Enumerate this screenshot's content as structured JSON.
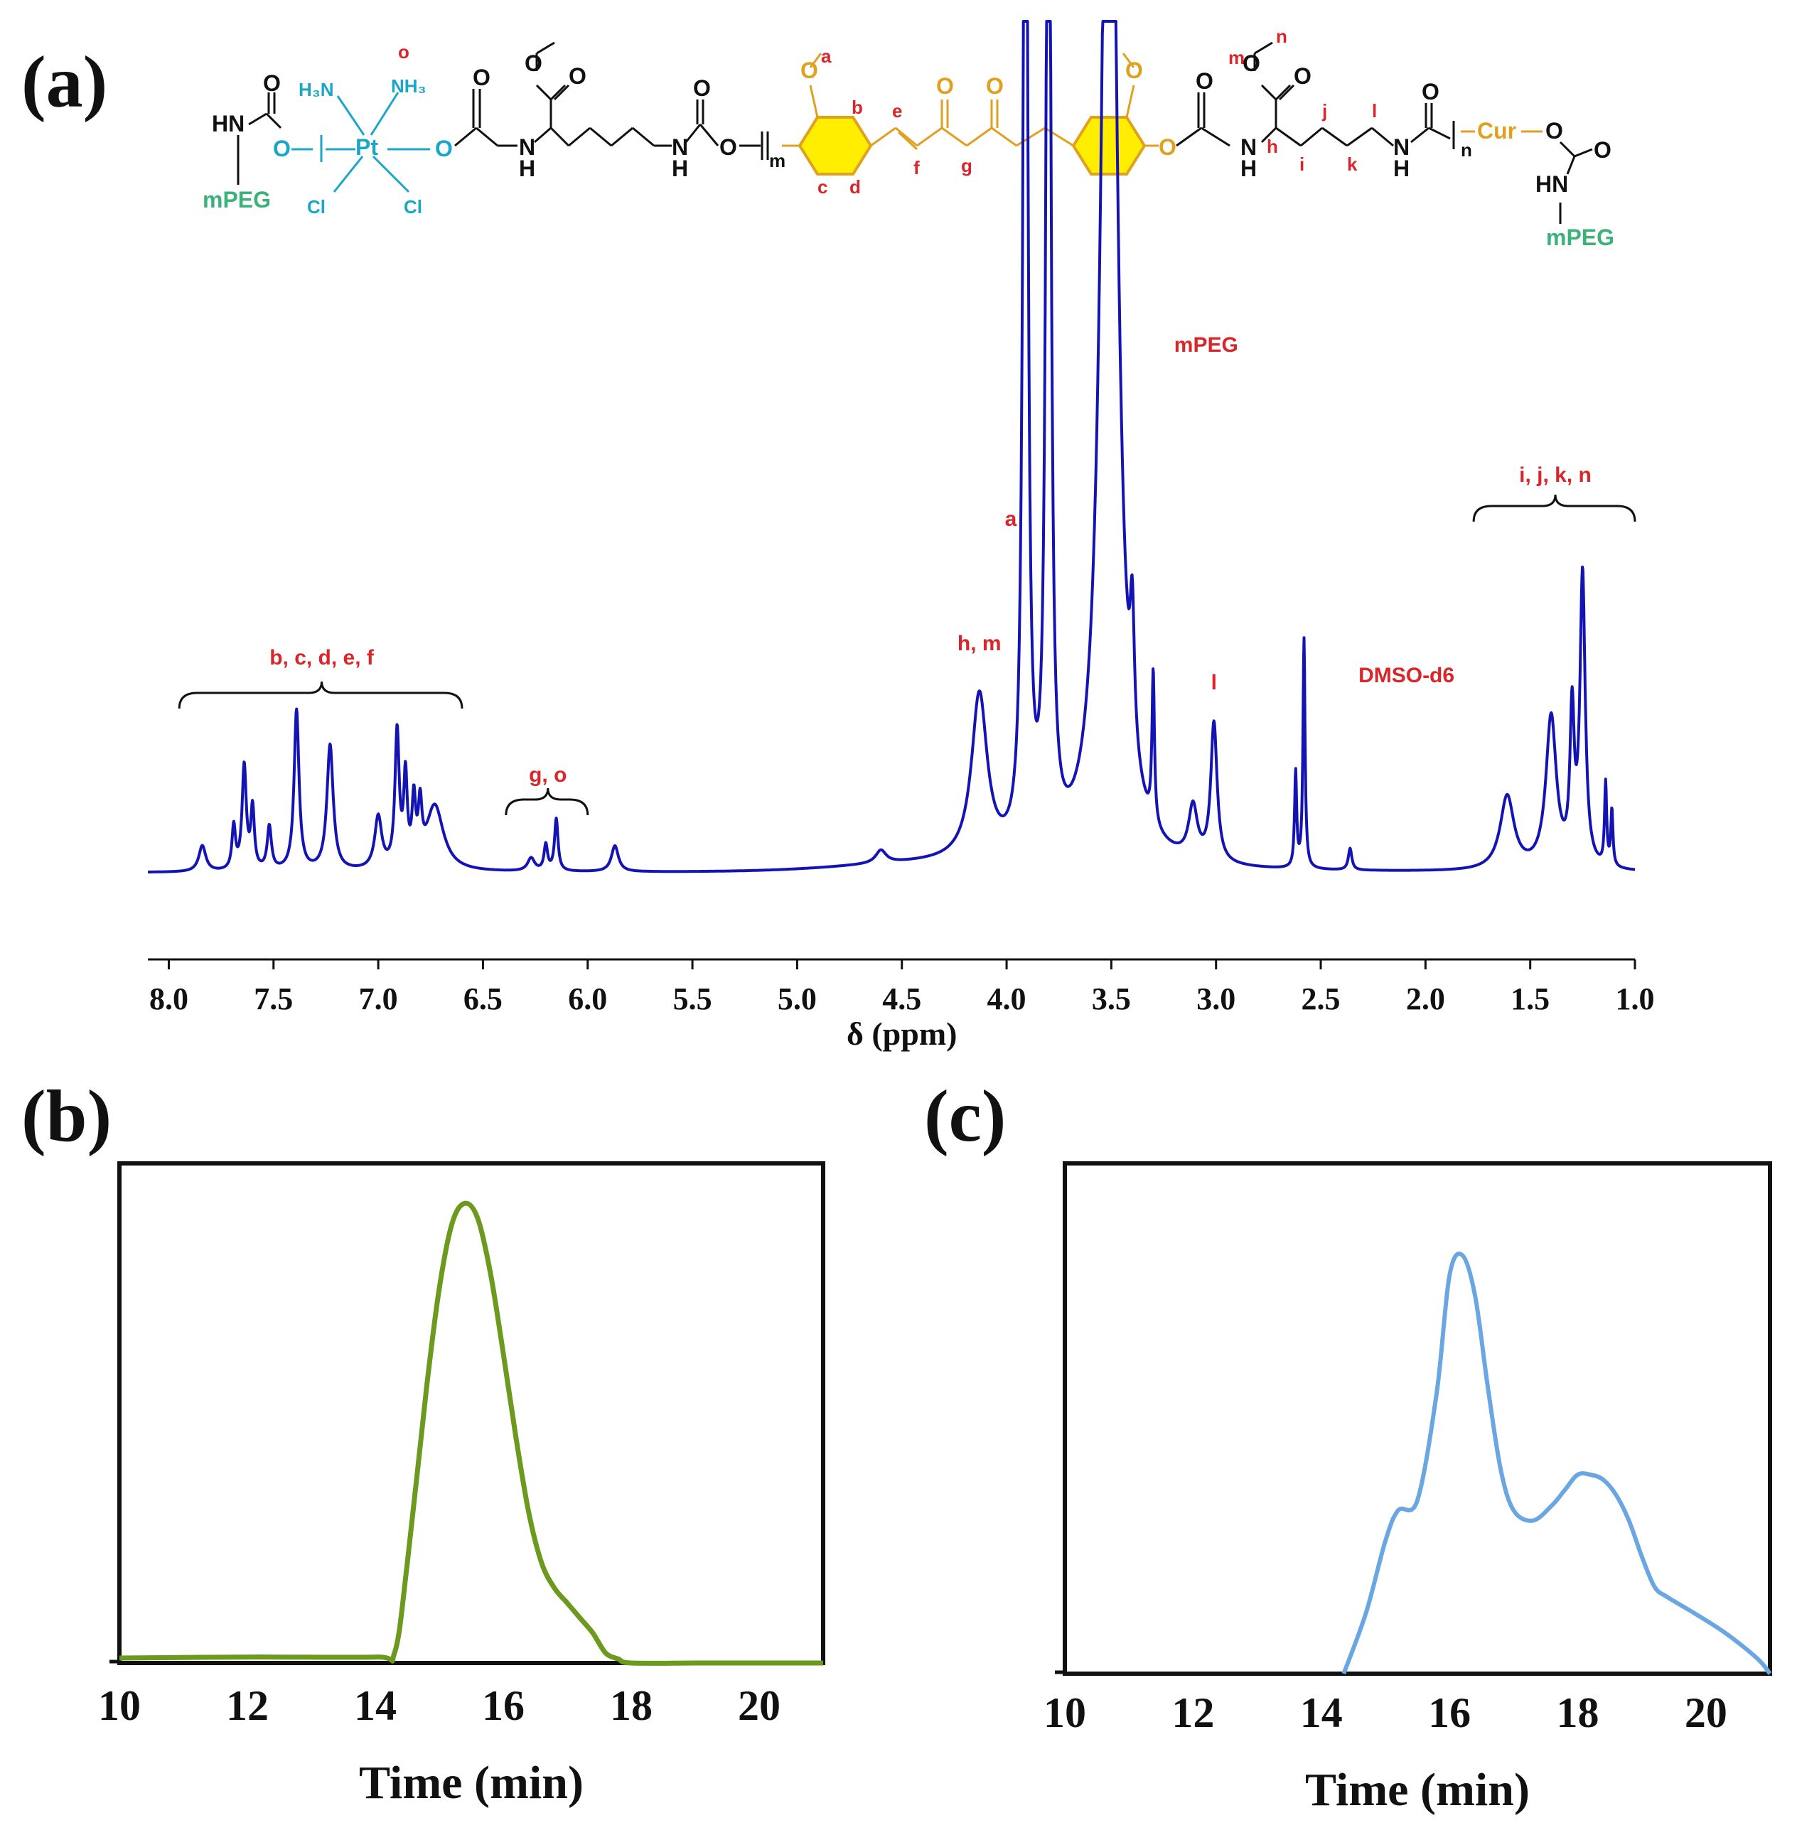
{
  "colors": {
    "nmr_trace": "#1414b4",
    "gpc_b": "#6b9a1e",
    "gpc_c": "#6aa6e2",
    "annotation": "#d9262a",
    "mpeg_green": "#3cb27a",
    "pt_cyan": "#1aa7c7",
    "curcumin_orange": "#e0a020",
    "ring_yellow": "#ffee00"
  },
  "panels": {
    "a": "(a)",
    "b": "(b)",
    "c": "(c)"
  },
  "structure": {
    "mpeg_left": "mPEG",
    "mpeg_right": "mPEG",
    "hn_left": "HN",
    "hn_right": "HN",
    "pt": "Pt",
    "h3n": "H₃N",
    "nh3": "NH₃",
    "cl_left": "Cl",
    "cl_right": "Cl",
    "o_label": "o",
    "oxygen": "O",
    "nh": "N",
    "h": "H",
    "cur": "Cur",
    "repeat_m": "m",
    "repeat_n": "n",
    "atoms": [
      "a",
      "b",
      "c",
      "d",
      "e",
      "f",
      "g",
      "h",
      "i",
      "j",
      "k",
      "l",
      "m",
      "n"
    ]
  },
  "chart_data": [
    {
      "id": "a",
      "type": "line",
      "title": "",
      "xlabel": "δ (ppm)",
      "ylabel": "",
      "xlim": [
        8.1,
        1.0
      ],
      "ylim": [
        0,
        1
      ],
      "x_reversed": true,
      "grid": false,
      "tick_labels": [
        "8.0",
        "7.5",
        "7.0",
        "6.5",
        "6.0",
        "5.5",
        "5.0",
        "4.5",
        "4.0",
        "3.5",
        "3.0",
        "2.5",
        "2.0",
        "1.5",
        "1.0"
      ],
      "tick_values": [
        8.0,
        7.5,
        7.0,
        6.5,
        6.0,
        5.5,
        5.0,
        4.5,
        4.0,
        3.5,
        3.0,
        2.5,
        2.0,
        1.5,
        1.0
      ],
      "peaks": [
        {
          "ppm": 7.84,
          "height": 0.06,
          "width": 0.02
        },
        {
          "ppm": 7.69,
          "height": 0.1,
          "width": 0.01
        },
        {
          "ppm": 7.64,
          "height": 0.24,
          "width": 0.012
        },
        {
          "ppm": 7.6,
          "height": 0.14,
          "width": 0.01
        },
        {
          "ppm": 7.52,
          "height": 0.1,
          "width": 0.012
        },
        {
          "ppm": 7.39,
          "height": 0.37,
          "width": 0.014
        },
        {
          "ppm": 7.23,
          "height": 0.29,
          "width": 0.018
        },
        {
          "ppm": 7.0,
          "height": 0.12,
          "width": 0.02
        },
        {
          "ppm": 6.91,
          "height": 0.31,
          "width": 0.012
        },
        {
          "ppm": 6.87,
          "height": 0.2,
          "width": 0.01
        },
        {
          "ppm": 6.83,
          "height": 0.14,
          "width": 0.01
        },
        {
          "ppm": 6.8,
          "height": 0.12,
          "width": 0.01
        },
        {
          "ppm": 6.73,
          "height": 0.15,
          "width": 0.05
        },
        {
          "ppm": 6.27,
          "height": 0.03,
          "width": 0.02
        },
        {
          "ppm": 6.2,
          "height": 0.06,
          "width": 0.01
        },
        {
          "ppm": 6.15,
          "height": 0.12,
          "width": 0.01
        },
        {
          "ppm": 5.87,
          "height": 0.06,
          "width": 0.02
        },
        {
          "ppm": 4.6,
          "height": 0.03,
          "width": 0.03
        },
        {
          "ppm": 4.13,
          "height": 0.38,
          "width": 0.045
        },
        {
          "ppm": 3.91,
          "height": 3.2,
          "width": 0.012
        },
        {
          "ppm": 3.8,
          "height": 3.2,
          "width": 0.012
        },
        {
          "ppm": 3.51,
          "height": 3.2,
          "width": 0.04
        },
        {
          "ppm": 3.4,
          "height": 0.3,
          "width": 0.012
        },
        {
          "ppm": 3.3,
          "height": 0.35,
          "width": 0.007
        },
        {
          "ppm": 3.11,
          "height": 0.12,
          "width": 0.025
        },
        {
          "ppm": 3.01,
          "height": 0.32,
          "width": 0.018
        },
        {
          "ppm": 2.62,
          "height": 0.22,
          "width": 0.006
        },
        {
          "ppm": 2.58,
          "height": 0.53,
          "width": 0.006
        },
        {
          "ppm": 2.36,
          "height": 0.05,
          "width": 0.01
        },
        {
          "ppm": 1.61,
          "height": 0.17,
          "width": 0.04
        },
        {
          "ppm": 1.4,
          "height": 0.35,
          "width": 0.03
        },
        {
          "ppm": 1.3,
          "height": 0.34,
          "width": 0.012
        },
        {
          "ppm": 1.25,
          "height": 0.67,
          "width": 0.015
        },
        {
          "ppm": 1.14,
          "height": 0.19,
          "width": 0.006
        },
        {
          "ppm": 1.11,
          "height": 0.13,
          "width": 0.006
        }
      ],
      "annotations": [
        {
          "text": "b, c, d, e, f",
          "ppm": 7.27,
          "bracket": [
            7.95,
            6.6
          ]
        },
        {
          "text": "g, o",
          "ppm": 6.19,
          "bracket": [
            6.39,
            6.0
          ]
        },
        {
          "text": "h, m",
          "ppm": 4.13
        },
        {
          "text": "a",
          "ppm": 3.98
        },
        {
          "text": "mPEG",
          "ppm": 3.2
        },
        {
          "text": "l",
          "ppm": 3.01
        },
        {
          "text": "DMSO-d6",
          "ppm": 2.32
        },
        {
          "text": "i, j, k, n",
          "ppm": 1.38,
          "bracket": [
            1.77,
            1.0
          ]
        }
      ]
    },
    {
      "id": "b",
      "type": "line",
      "title": "",
      "xlabel": "Time (min)",
      "ylabel": "",
      "xlim": [
        10,
        21
      ],
      "ylim": [
        0,
        1
      ],
      "grid": false,
      "tick_labels": [
        "10",
        "12",
        "14",
        "16",
        "18",
        "20"
      ],
      "tick_values": [
        10,
        12,
        14,
        16,
        18,
        20
      ],
      "x": [
        10.0,
        12.0,
        14.0,
        14.3,
        14.5,
        14.8,
        15.0,
        15.2,
        15.4,
        15.6,
        15.8,
        16.0,
        16.2,
        16.4,
        16.6,
        16.8,
        17.0,
        17.2,
        17.4,
        17.6,
        17.8,
        18.0,
        19.0,
        20.0,
        21.0
      ],
      "values": [
        0.01,
        0.012,
        0.012,
        0.02,
        0.2,
        0.55,
        0.75,
        0.88,
        0.92,
        0.89,
        0.78,
        0.62,
        0.45,
        0.3,
        0.2,
        0.15,
        0.12,
        0.09,
        0.06,
        0.02,
        0.008,
        0.0,
        0.0,
        0.0,
        0.0
      ]
    },
    {
      "id": "c",
      "type": "line",
      "title": "",
      "xlabel": "Time (min)",
      "ylabel": "",
      "xlim": [
        10,
        21
      ],
      "ylim": [
        0,
        1
      ],
      "grid": false,
      "tick_labels": [
        "10",
        "12",
        "14",
        "16",
        "18",
        "20"
      ],
      "tick_values": [
        10,
        12,
        14,
        16,
        18,
        20
      ],
      "x": [
        14.35,
        14.7,
        15.0,
        15.2,
        15.5,
        15.8,
        16.0,
        16.2,
        16.4,
        16.6,
        16.8,
        17.0,
        17.3,
        17.6,
        17.8,
        18.0,
        18.2,
        18.4,
        18.6,
        18.8,
        19.0,
        19.2,
        19.4,
        19.8,
        20.3,
        20.8,
        21.0
      ],
      "values": [
        0.0,
        0.12,
        0.26,
        0.32,
        0.34,
        0.55,
        0.78,
        0.82,
        0.74,
        0.56,
        0.4,
        0.32,
        0.3,
        0.33,
        0.36,
        0.39,
        0.39,
        0.38,
        0.35,
        0.3,
        0.23,
        0.17,
        0.15,
        0.12,
        0.08,
        0.03,
        0.0
      ]
    }
  ]
}
